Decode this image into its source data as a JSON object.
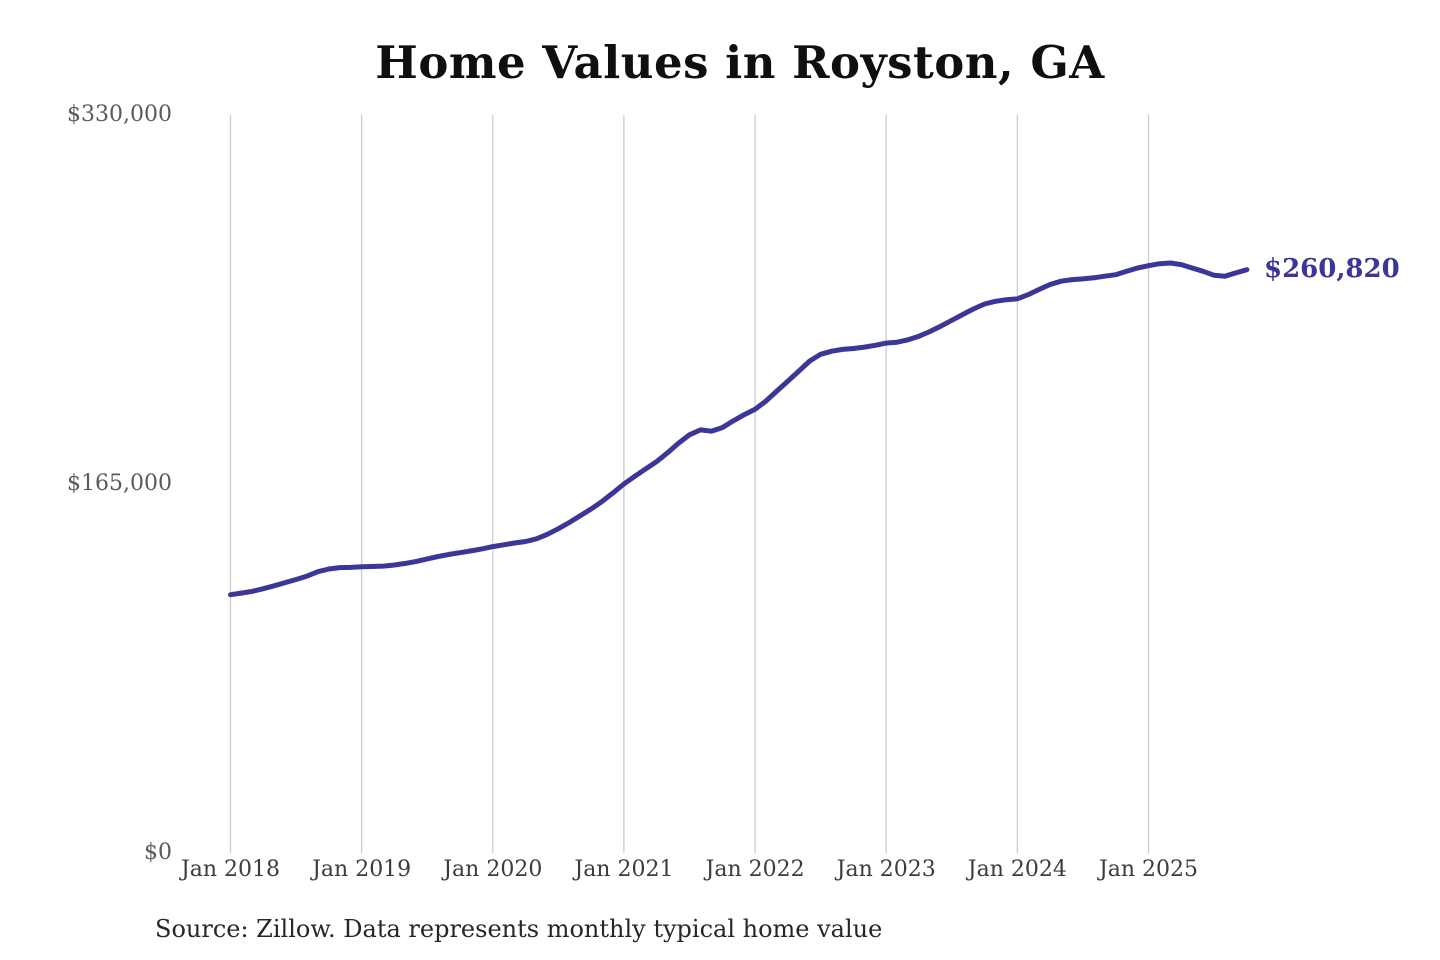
{
  "page": {
    "background_color": "#ffffff"
  },
  "chart_data": {
    "type": "line",
    "title": "Home Values in Royston, GA",
    "source_note": "Source: Zillow. Data represents monthly typical home value",
    "end_label": "$260,820",
    "line_color": "#3b3697",
    "end_label_color": "#3b3697",
    "gridline_color": "#cccccc",
    "grid": "vertical-only",
    "legend": "none",
    "ylim": [
      0,
      330000
    ],
    "x_start": "Jan 2018",
    "x_end": "Oct 2025",
    "x_frequency": "monthly",
    "y_ticks": [
      {
        "label": "$0",
        "value": 0
      },
      {
        "label": "$165,000",
        "value": 165000
      },
      {
        "label": "$330,000",
        "value": 330000
      }
    ],
    "x_ticks": [
      {
        "label": "Jan 2018",
        "month_index": 0
      },
      {
        "label": "Jan 2019",
        "month_index": 12
      },
      {
        "label": "Jan 2020",
        "month_index": 24
      },
      {
        "label": "Jan 2021",
        "month_index": 36
      },
      {
        "label": "Jan 2022",
        "month_index": 48
      },
      {
        "label": "Jan 2023",
        "month_index": 60
      },
      {
        "label": "Jan 2024",
        "month_index": 72
      },
      {
        "label": "Jan 2025",
        "month_index": 84
      }
    ],
    "series": [
      {
        "name": "Typical home value",
        "values": [
          115500,
          116200,
          117000,
          118200,
          119500,
          120900,
          122300,
          123800,
          125800,
          127000,
          127600,
          127700,
          128000,
          128100,
          128300,
          128800,
          129500,
          130400,
          131500,
          132600,
          133500,
          134300,
          135100,
          136000,
          137000,
          137800,
          138600,
          139300,
          140500,
          142500,
          145000,
          147800,
          150800,
          153800,
          157200,
          161000,
          165000,
          168500,
          171800,
          175000,
          179000,
          183300,
          187000,
          189200,
          188600,
          190200,
          193200,
          196000,
          198400,
          202100,
          206600,
          211000,
          215500,
          220000,
          223000,
          224400,
          225200,
          225600,
          226200,
          227000,
          228000,
          228400,
          229500,
          231100,
          233200,
          235600,
          238200,
          240800,
          243300,
          245500,
          246700,
          247400,
          247800,
          249700,
          252000,
          254200,
          255700,
          256400,
          256700,
          257200,
          257900,
          258600,
          260100,
          261600,
          262600,
          263500,
          263800,
          263100,
          261600,
          260100,
          258300,
          257900,
          259400,
          260820
        ]
      }
    ],
    "final_value": 260820
  }
}
